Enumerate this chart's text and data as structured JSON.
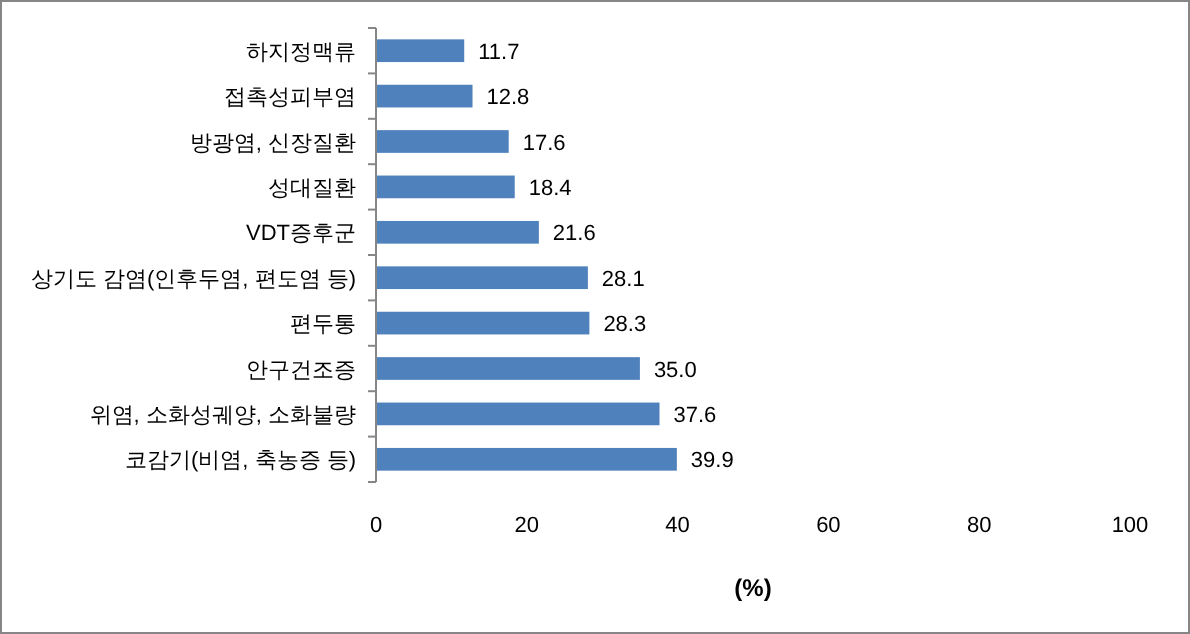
{
  "chart_data": {
    "type": "bar",
    "orientation": "horizontal",
    "xlabel": "(%)",
    "categories": [
      "하지정맥류",
      "접촉성피부염",
      "방광염, 신장질환",
      "성대질환",
      "VDT증후군",
      "상기도 감염(인후두염, 편도염 등)",
      "편두통",
      "안구건조증",
      "위염, 소화성궤양, 소화불량",
      "코감기(비염, 축농증 등)"
    ],
    "values": [
      11.7,
      12.8,
      17.6,
      18.4,
      21.6,
      28.1,
      28.3,
      35.0,
      37.6,
      39.9
    ],
    "value_labels": [
      "11.7",
      "12.8",
      "17.6",
      "18.4",
      "21.6",
      "28.1",
      "28.3",
      "35.0",
      "37.6",
      "39.9"
    ],
    "color": "#4f81bd",
    "xlim": [
      0,
      100
    ],
    "xticks": [
      0,
      20,
      40,
      60,
      80,
      100
    ],
    "grid": false
  }
}
